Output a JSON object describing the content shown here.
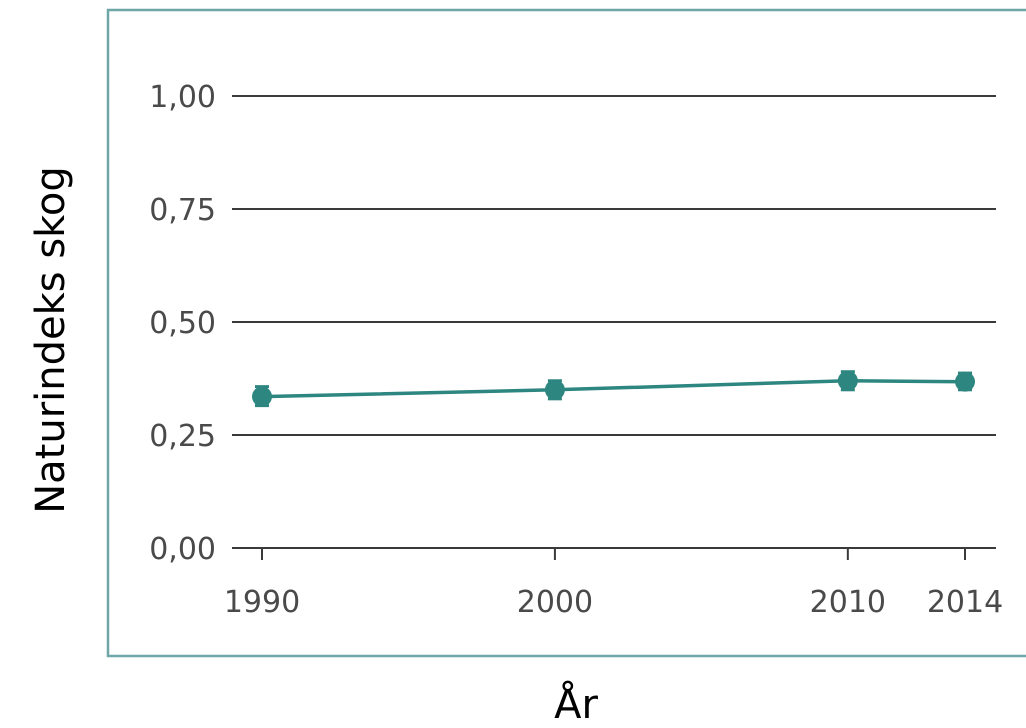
{
  "chart_data": {
    "type": "line",
    "title": "",
    "xlabel": "År",
    "ylabel": "Naturindeks skog",
    "x": [
      1990,
      2000,
      2010,
      2014
    ],
    "x_tick_labels": [
      "1990",
      "2000",
      "2010",
      "2014"
    ],
    "xlim": [
      1990,
      2014
    ],
    "ylim": [
      0,
      1
    ],
    "y_ticks": [
      0,
      0.25,
      0.5,
      0.75,
      1
    ],
    "y_tick_labels": [
      "0,00",
      "0,25",
      "0,50",
      "0,75",
      "1,00"
    ],
    "grid": true,
    "legend": "none",
    "series": [
      {
        "values": [
          0.335,
          0.35,
          0.37,
          0.368
        ],
        "lower": [
          0.315,
          0.33,
          0.35,
          0.35
        ],
        "upper": [
          0.357,
          0.37,
          0.39,
          0.387
        ],
        "color": "#2e8680"
      }
    ]
  }
}
